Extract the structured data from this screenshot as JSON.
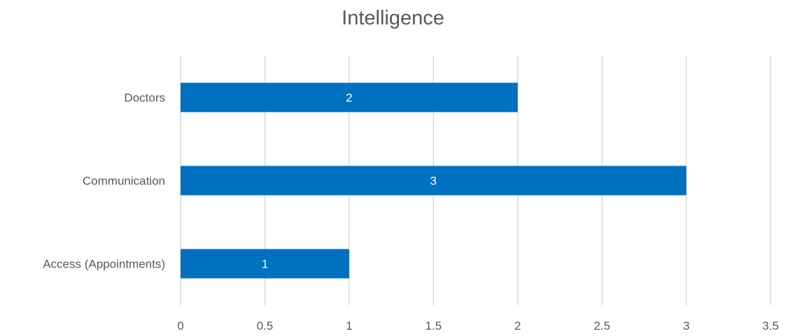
{
  "chart_data": {
    "type": "bar",
    "orientation": "horizontal",
    "title": "Intelligence",
    "categories": [
      "Doctors",
      "Communication",
      "Access (Appointments)"
    ],
    "values": [
      2,
      3,
      1
    ],
    "data_labels": [
      "2",
      "3",
      "1"
    ],
    "xlim": [
      0,
      3.5
    ],
    "x_ticks": [
      "0",
      "0.5",
      "1",
      "1.5",
      "2",
      "2.5",
      "3",
      "3.5"
    ],
    "grid": "vertical",
    "legend": "none",
    "bar_color": "#0070C0",
    "label_color": "#ffffff"
  }
}
